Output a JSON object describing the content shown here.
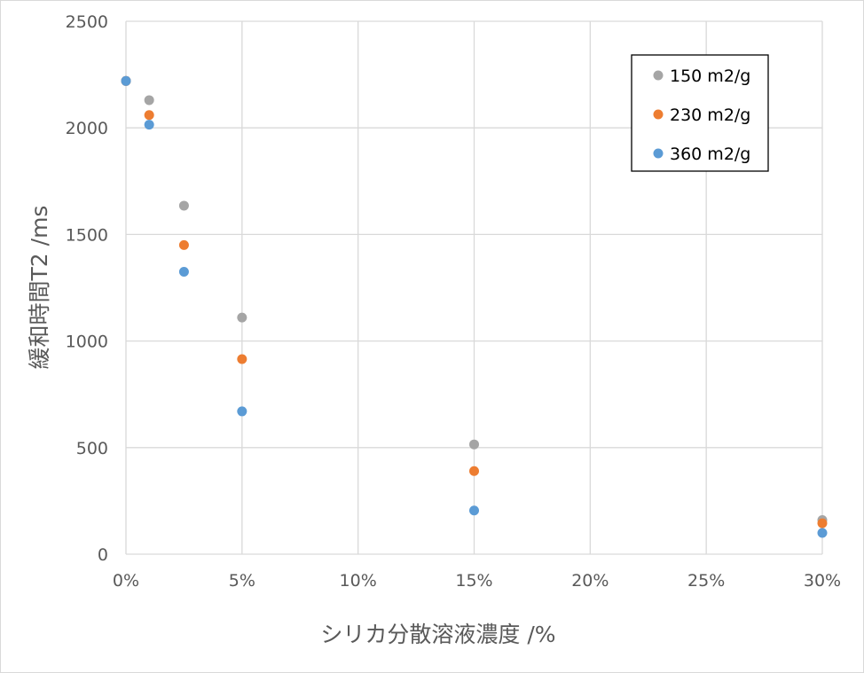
{
  "chart_data": {
    "type": "scatter",
    "xlabel": "シリカ分散溶液濃度 /%",
    "ylabel": "緩和時間T2 /ms",
    "xlim": [
      0,
      0.3
    ],
    "ylim": [
      0,
      2500
    ],
    "x_ticks": [
      0,
      0.05,
      0.1,
      0.15,
      0.2,
      0.25,
      0.3
    ],
    "x_tick_labels": [
      "0%",
      "5%",
      "10%",
      "15%",
      "20%",
      "25%",
      "30%"
    ],
    "y_ticks": [
      0,
      500,
      1000,
      1500,
      2000,
      2500
    ],
    "y_tick_labels": [
      "0",
      "500",
      "1000",
      "1500",
      "2000",
      "2500"
    ],
    "grid": true,
    "legend_position": "top-right",
    "series": [
      {
        "name": "150 m2/g",
        "color": "#a5a5a5",
        "points": [
          [
            0,
            2220
          ],
          [
            0.01,
            2130
          ],
          [
            0.025,
            1635
          ],
          [
            0.05,
            1110
          ],
          [
            0.15,
            515
          ],
          [
            0.3,
            160
          ]
        ]
      },
      {
        "name": "230 m2/g",
        "color": "#ed7d31",
        "points": [
          [
            0,
            2220
          ],
          [
            0.01,
            2060
          ],
          [
            0.025,
            1450
          ],
          [
            0.05,
            915
          ],
          [
            0.15,
            390
          ],
          [
            0.3,
            145
          ]
        ]
      },
      {
        "name": "360 m2/g",
        "color": "#5b9bd5",
        "points": [
          [
            0,
            2220
          ],
          [
            0.01,
            2015
          ],
          [
            0.025,
            1325
          ],
          [
            0.05,
            670
          ],
          [
            0.15,
            205
          ],
          [
            0.3,
            100
          ]
        ]
      }
    ]
  }
}
